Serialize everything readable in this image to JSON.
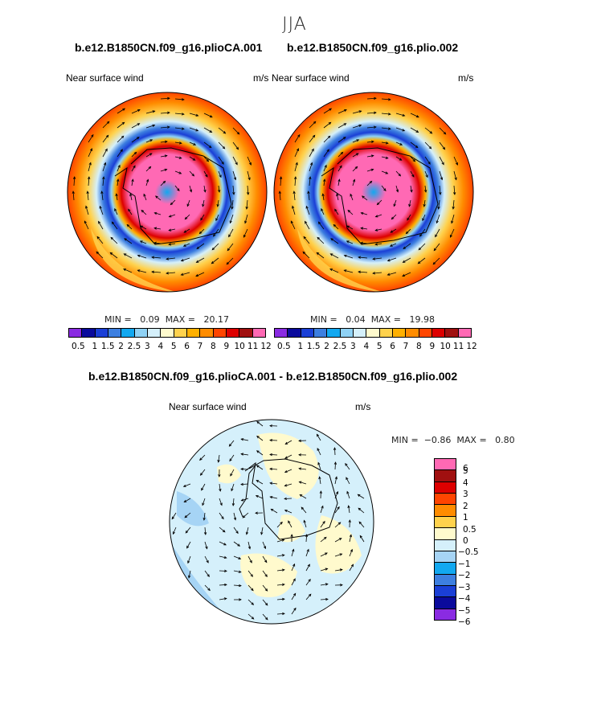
{
  "title": "JJA",
  "panels": [
    {
      "case": "b.e12.B1850CN.f09_g16.plioCA.001",
      "left_label": "Near surface wind",
      "right_label": "m/s",
      "min_label": "MIN =",
      "min": "0.09",
      "max_label": "MAX =",
      "max": "20.17"
    },
    {
      "case": "b.e12.B1850CN.f09_g16.plio.002",
      "left_label": "Near surface wind",
      "right_label": "m/s",
      "min_label": "MIN =",
      "min": "0.04",
      "max_label": "MAX =",
      "max": "19.98"
    }
  ],
  "diff": {
    "case": "b.e12.B1850CN.f09_g16.plioCA.001 - b.e12.B1850CN.f09_g16.plio.002",
    "left_label": "Near surface wind",
    "right_label": "m/s",
    "min_label": "MIN =",
    "min": "−0.86",
    "max_label": "MAX =",
    "max": "0.80"
  },
  "colorbar_abs": {
    "colors": [
      "#8a2be2",
      "#0a0a9c",
      "#1a3fd6",
      "#3d7fe0",
      "#12a8f0",
      "#8fd2f5",
      "#d5f0fb",
      "#fffacd",
      "#ffd24d",
      "#ffb000",
      "#ff8c00",
      "#ff4500",
      "#dd0000",
      "#a01010",
      "#ff69b4"
    ],
    "ticks": [
      "0.5",
      "1",
      "1.5",
      "2",
      "2.5",
      "3",
      "4",
      "5",
      "6",
      "7",
      "8",
      "9",
      "10",
      "11",
      "12"
    ]
  },
  "colorbar_diff": {
    "colors": [
      "#ff69b4",
      "#a01010",
      "#dd0000",
      "#ff4500",
      "#ff8c00",
      "#ffd24d",
      "#fffacd",
      "#d5f0fb",
      "#a6d4f5",
      "#12a8f0",
      "#3d7fe0",
      "#1a3fd6",
      "#0a0a9c",
      "#8a2be2"
    ],
    "ticks": [
      "6",
      "5",
      "4",
      "3",
      "2",
      "1",
      "0.5",
      "0",
      "−0.5",
      "−1",
      "−2",
      "−3",
      "−4",
      "−5",
      "−6"
    ]
  }
}
